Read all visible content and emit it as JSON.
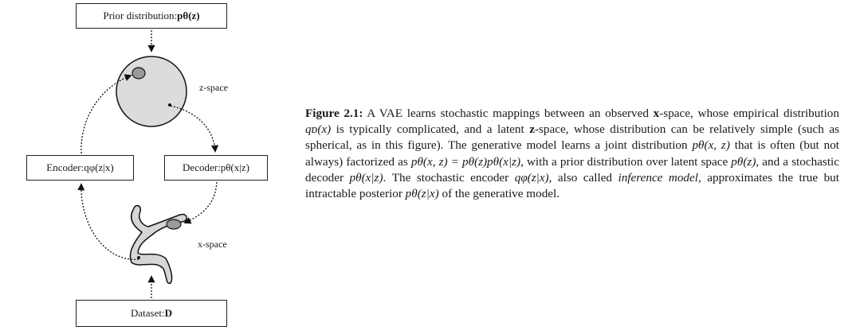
{
  "diagram": {
    "prior_box": {
      "text": "Prior distribution: ",
      "math": "pθ(z)"
    },
    "encoder_box": {
      "text": "Encoder: ",
      "math": "qφ(z|x)"
    },
    "decoder_box": {
      "text": "Decoder: ",
      "math": "pθ(x|z)"
    },
    "dataset_box": {
      "text": "Dataset: ",
      "math": "D"
    },
    "z_space_label": "z-space",
    "x_space_label": "x-space"
  },
  "caption": {
    "figure_label": "Figure 2.1:",
    "s1": " A VAE learns stochastic mappings between an observed ",
    "x_bold": "x",
    "s2": "-space, whose empirical distribution ",
    "qd": "qᴅ(x)",
    "s3": " is typically complicated, and a latent ",
    "z_bold": "z",
    "s4": "-space, whose distribution can be relatively simple (such as spherical, as in this figure). The generative model learns a joint distribution ",
    "pxz": "pθ(x, z)",
    "s5": " that is often (but not always) factorized as ",
    "factor": "pθ(x, z) = pθ(z)pθ(x|z)",
    "s6": ", with a prior distribution over latent space ",
    "pz": "pθ(z)",
    "s7": ", and a stochastic decoder ",
    "pxgz": "pθ(x|z)",
    "s8": ". The stochastic encoder ",
    "qzgx": "qφ(z|x)",
    "s9": ", also called ",
    "inference_model": "inference model",
    "s10": ", approximates the true but intractable posterior ",
    "pzgx": "pθ(z|x)",
    "s11": " of the generative model."
  }
}
